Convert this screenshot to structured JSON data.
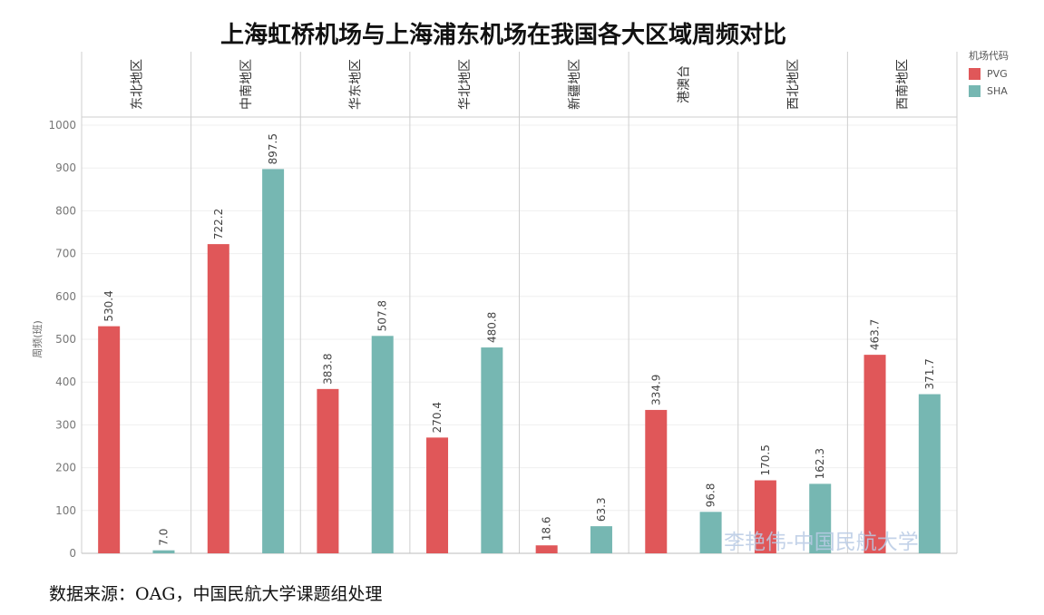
{
  "chart_data": {
    "type": "bar",
    "title": "上海虹桥机场与上海浦东机场在我国各大区域周频对比",
    "ylabel": "周频(班)",
    "ylim": [
      0,
      1000
    ],
    "yticks": [
      0,
      100,
      200,
      300,
      400,
      500,
      600,
      700,
      800,
      900,
      1000
    ],
    "grid": true,
    "legend_position": "right",
    "legend_title": "机场代码",
    "categories": [
      "东北地区",
      "中南地区",
      "华东地区",
      "华北地区",
      "新疆地区",
      "港澳台",
      "西北地区",
      "西南地区"
    ],
    "series": [
      {
        "name": "PVG",
        "color": "#e05759",
        "values": [
          530.4,
          722.2,
          383.8,
          270.4,
          18.6,
          334.9,
          170.5,
          463.7
        ]
      },
      {
        "name": "SHA",
        "color": "#76b7b2",
        "values": [
          7.0,
          897.5,
          507.8,
          480.8,
          63.3,
          96.8,
          162.3,
          371.7
        ]
      }
    ]
  },
  "source_note": "数据来源：OAG，中国民航大学课题组处理",
  "watermark": "李艳伟-中国民航大学"
}
